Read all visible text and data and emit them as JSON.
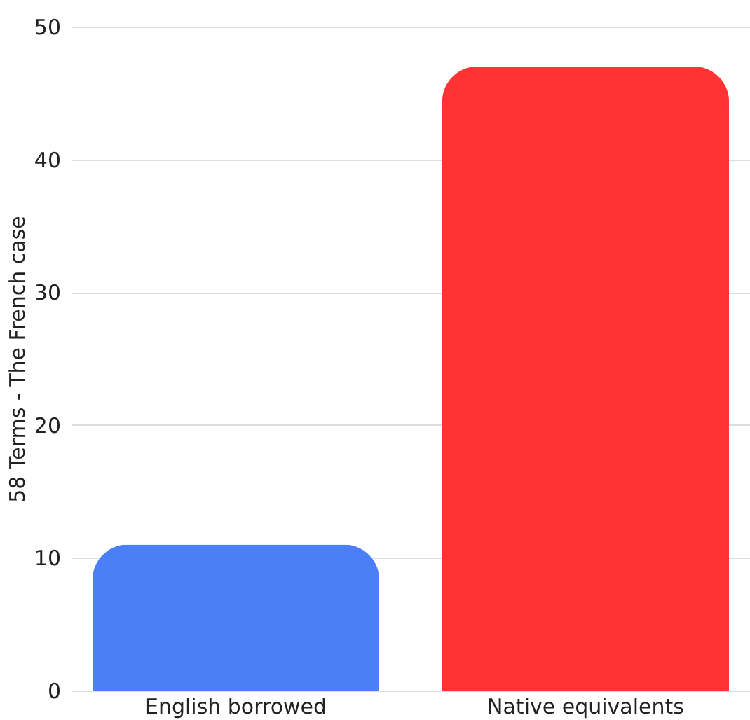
{
  "chart_data": {
    "type": "bar",
    "ylabel": "58 Terms - The French case",
    "categories": [
      "English borrowed",
      "Native equivalents"
    ],
    "values": [
      11,
      47
    ],
    "colors": [
      "#4a7ff7",
      "#ff3333"
    ],
    "ylim": [
      0,
      50
    ],
    "yticks": [
      0,
      10,
      20,
      30,
      40,
      50
    ],
    "grid": "y",
    "legend": false
  }
}
